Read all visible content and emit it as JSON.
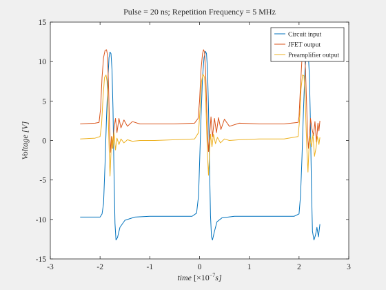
{
  "chart_data": {
    "type": "line",
    "title": "Pulse = 20 ns; Repetition Frequency = 5 MHz",
    "xlabel": "time [×10⁻⁷s]",
    "xlabel_parts": {
      "name": "time",
      "open": "[×10",
      "exp": "−7",
      "unit": "s]"
    },
    "ylabel": "Voltage [V]",
    "ylabel_parts": {
      "name": "Voltage",
      "unit": "[V]"
    },
    "xlim": [
      -3,
      3
    ],
    "ylim": [
      -15,
      15
    ],
    "xticks": [
      -3,
      -2,
      -1,
      0,
      1,
      2,
      3
    ],
    "yticks": [
      -15,
      -10,
      -5,
      0,
      5,
      10,
      15
    ],
    "grid": false,
    "legend_position": "top-right",
    "series": [
      {
        "name": "Circuit input",
        "color": "#0072BD",
        "x": [
          -2.4,
          -2.0,
          -1.96,
          -1.93,
          -1.9,
          -1.87,
          -1.84,
          -1.82,
          -1.8,
          -1.78,
          -1.76,
          -1.74,
          -1.72,
          -1.7,
          -1.68,
          -1.65,
          -1.6,
          -1.5,
          -1.3,
          -1.0,
          -0.5,
          -0.15,
          -0.06,
          -0.02,
          0.0,
          0.03,
          0.06,
          0.09,
          0.12,
          0.14,
          0.16,
          0.18,
          0.2,
          0.22,
          0.24,
          0.26,
          0.3,
          0.35,
          0.45,
          0.7,
          1.0,
          1.5,
          1.9,
          2.0,
          2.03,
          2.06,
          2.09,
          2.12,
          2.15,
          2.17,
          2.19,
          2.21,
          2.23,
          2.25,
          2.27,
          2.3,
          2.33,
          2.36,
          2.39,
          2.42
        ],
        "y": [
          -9.7,
          -9.7,
          -9.3,
          -8.0,
          -3.0,
          3.0,
          8.0,
          10.5,
          11.2,
          11.0,
          9.0,
          4.0,
          -4.0,
          -10.5,
          -12.6,
          -12.3,
          -11.0,
          -10.1,
          -9.7,
          -9.6,
          -9.6,
          -9.6,
          -9.2,
          -7.0,
          -3.0,
          3.0,
          8.0,
          10.5,
          11.3,
          11.0,
          9.0,
          4.0,
          -3.0,
          -9.5,
          -12.2,
          -12.6,
          -11.5,
          -10.3,
          -9.8,
          -9.6,
          -9.6,
          -9.6,
          -9.6,
          -9.3,
          -7.0,
          -2.0,
          4.0,
          9.0,
          11.2,
          11.3,
          10.5,
          8.0,
          2.0,
          -6.0,
          -11.5,
          -12.6,
          -12.0,
          -11.0,
          -12.2,
          -10.6
        ]
      },
      {
        "name": "JFET output",
        "color": "#D95319",
        "x": [
          -2.4,
          -2.1,
          -2.02,
          -1.99,
          -1.96,
          -1.93,
          -1.9,
          -1.87,
          -1.85,
          -1.83,
          -1.81,
          -1.79,
          -1.77,
          -1.75,
          -1.72,
          -1.69,
          -1.66,
          -1.62,
          -1.58,
          -1.52,
          -1.45,
          -1.35,
          -1.2,
          -0.9,
          -0.5,
          -0.1,
          -0.03,
          0.0,
          0.03,
          0.06,
          0.08,
          0.1,
          0.12,
          0.14,
          0.16,
          0.18,
          0.2,
          0.23,
          0.26,
          0.3,
          0.34,
          0.38,
          0.43,
          0.5,
          0.6,
          0.8,
          1.2,
          1.7,
          1.98,
          2.0,
          2.03,
          2.06,
          2.09,
          2.11,
          2.13,
          2.15,
          2.17,
          2.19,
          2.21,
          2.23,
          2.26,
          2.29,
          2.32,
          2.35,
          2.38,
          2.4,
          2.42
        ],
        "y": [
          2.1,
          2.2,
          2.3,
          4.0,
          8.0,
          10.5,
          11.4,
          11.5,
          10.8,
          7.0,
          2.0,
          -1.5,
          0.5,
          -1.0,
          1.5,
          2.8,
          1.0,
          2.8,
          1.6,
          2.6,
          1.8,
          2.4,
          2.1,
          2.1,
          2.1,
          2.2,
          2.8,
          5.0,
          9.0,
          11.0,
          11.5,
          11.2,
          9.0,
          5.0,
          1.0,
          -1.4,
          0.5,
          3.0,
          0.5,
          2.8,
          1.0,
          2.9,
          1.4,
          2.7,
          1.8,
          2.2,
          2.1,
          2.1,
          2.3,
          3.0,
          7.0,
          10.5,
          11.5,
          11.2,
          9.0,
          5.0,
          1.0,
          -1.0,
          0.5,
          2.8,
          1.5,
          0.6,
          2.4,
          -0.2,
          2.2,
          1.2,
          2.5
        ]
      },
      {
        "name": "Preamplifier output",
        "color": "#EDB120",
        "x": [
          -2.4,
          -2.1,
          -2.0,
          -1.97,
          -1.94,
          -1.91,
          -1.88,
          -1.86,
          -1.84,
          -1.82,
          -1.8,
          -1.78,
          -1.76,
          -1.74,
          -1.72,
          -1.69,
          -1.66,
          -1.62,
          -1.58,
          -1.52,
          -1.45,
          -1.35,
          -1.2,
          -0.9,
          -0.5,
          -0.1,
          -0.02,
          0.01,
          0.04,
          0.07,
          0.1,
          0.12,
          0.14,
          0.16,
          0.18,
          0.2,
          0.22,
          0.25,
          0.28,
          0.32,
          0.36,
          0.42,
          0.5,
          0.6,
          0.8,
          1.2,
          1.7,
          1.98,
          2.01,
          2.04,
          2.07,
          2.1,
          2.12,
          2.14,
          2.16,
          2.18,
          2.2,
          2.22,
          2.25,
          2.28,
          2.31,
          2.34,
          2.37,
          2.4,
          2.42
        ],
        "y": [
          0.2,
          0.3,
          0.5,
          2.0,
          5.5,
          8.0,
          8.3,
          7.5,
          4.0,
          -0.5,
          -4.5,
          -1.5,
          0.5,
          -1.0,
          1.0,
          -1.2,
          0.3,
          -0.5,
          0.2,
          -0.3,
          0.1,
          -0.1,
          0.0,
          0.0,
          0.1,
          0.2,
          1.0,
          4.0,
          7.5,
          8.4,
          8.0,
          6.0,
          2.0,
          -2.0,
          -4.4,
          -1.5,
          0.8,
          -0.8,
          0.8,
          -0.4,
          0.4,
          -0.3,
          0.2,
          0.0,
          0.1,
          0.2,
          0.2,
          0.5,
          2.5,
          6.5,
          8.3,
          8.2,
          6.0,
          2.0,
          -1.5,
          -4.0,
          -1.0,
          0.5,
          -0.8,
          0.8,
          -2.0,
          -1.0,
          0.5,
          -0.5,
          0.4
        ]
      }
    ]
  }
}
